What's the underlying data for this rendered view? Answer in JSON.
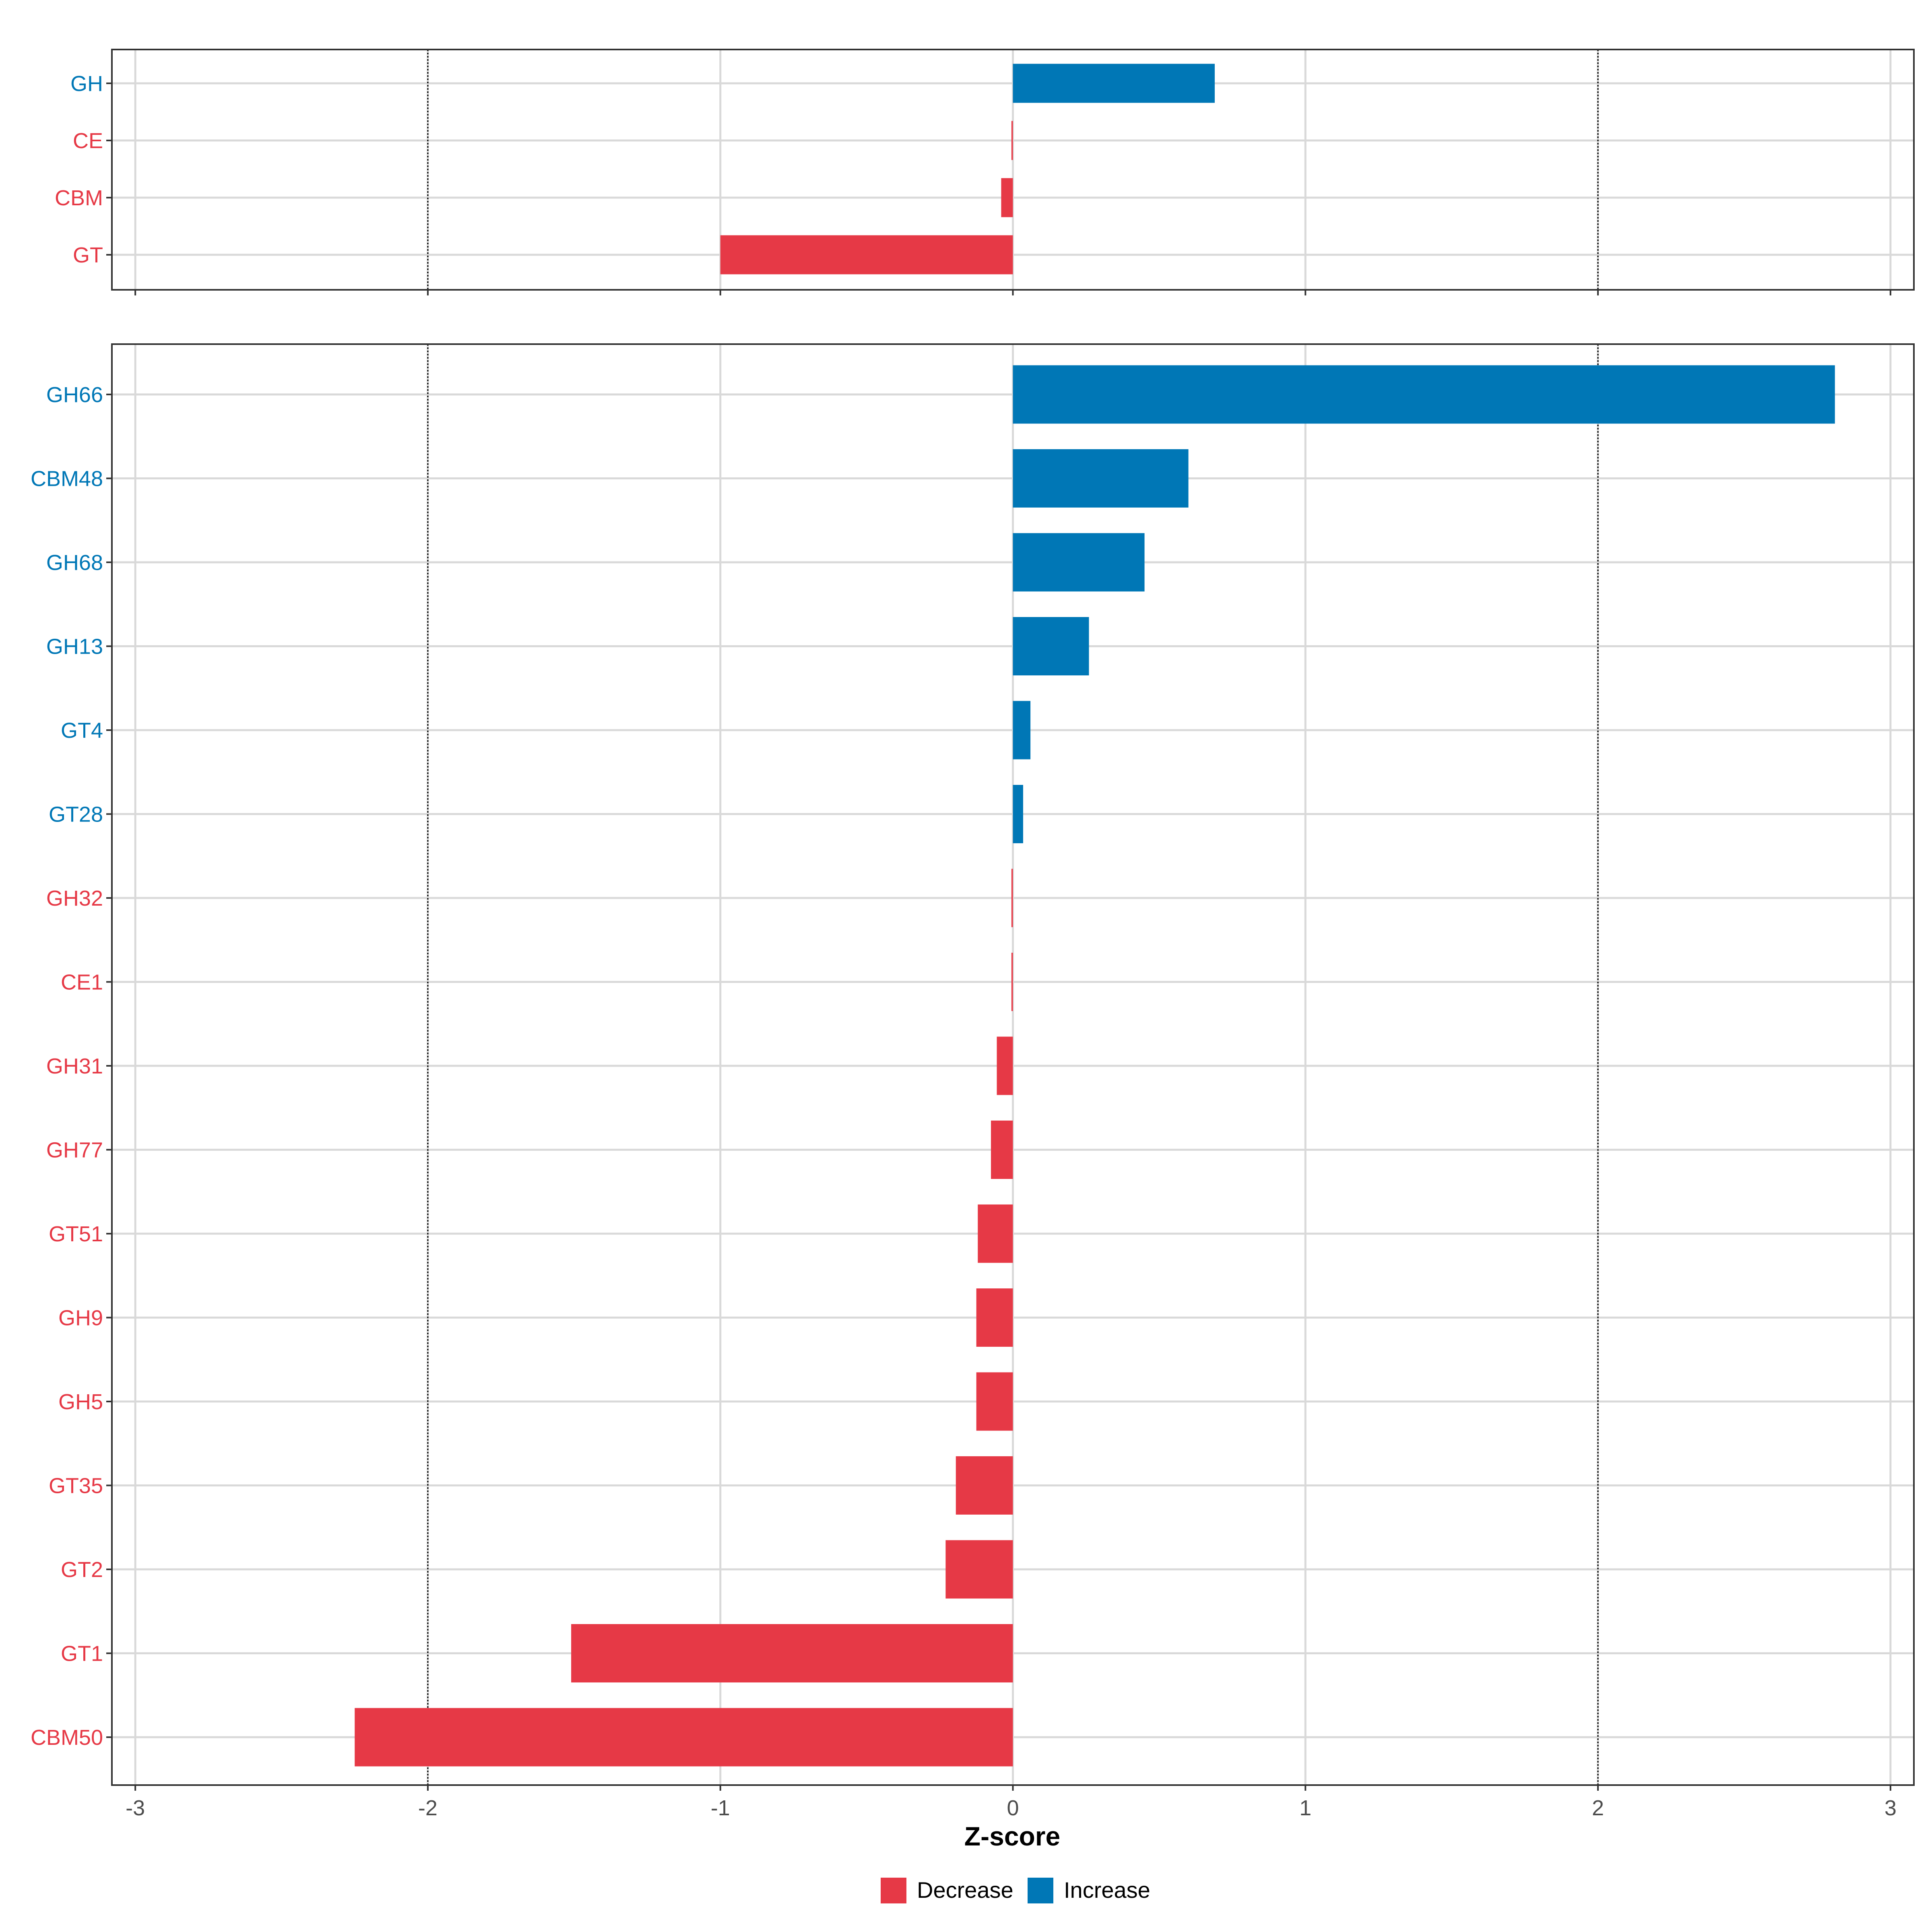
{
  "chart_data": {
    "type": "bar",
    "orientation": "horizontal",
    "xlabel": "Z-score",
    "xlim": [
      -3.08,
      3.08
    ],
    "x_ticks": [
      -3,
      -2,
      -1,
      0,
      1,
      2,
      3
    ],
    "reference_lines": [
      -2,
      2
    ],
    "grid": true,
    "colors": {
      "Decrease": "#E63946",
      "Increase": "#0077B6"
    },
    "legend": {
      "position": "bottom",
      "entries": [
        "Decrease",
        "Increase"
      ]
    },
    "panels": [
      {
        "categories": [
          "GH",
          "CE",
          "CBM",
          "GT"
        ],
        "values": [
          0.69,
          -0.005,
          -0.04,
          -1.0
        ],
        "groups": [
          "Increase",
          "Decrease",
          "Decrease",
          "Decrease"
        ]
      },
      {
        "categories": [
          "GH66",
          "CBM48",
          "GH68",
          "GH13",
          "GT4",
          "GT28",
          "GH32",
          "CE1",
          "GH31",
          "GH77",
          "GT51",
          "GH9",
          "GH5",
          "GT35",
          "GT2",
          "GT1",
          "CBM50"
        ],
        "values": [
          2.81,
          0.6,
          0.45,
          0.26,
          0.06,
          0.035,
          -0.005,
          -0.005,
          -0.055,
          -0.075,
          -0.12,
          -0.125,
          -0.125,
          -0.195,
          -0.23,
          -1.51,
          -2.25
        ],
        "groups": [
          "Increase",
          "Increase",
          "Increase",
          "Increase",
          "Increase",
          "Increase",
          "Decrease",
          "Decrease",
          "Decrease",
          "Decrease",
          "Decrease",
          "Decrease",
          "Decrease",
          "Decrease",
          "Decrease",
          "Decrease",
          "Decrease"
        ]
      }
    ]
  }
}
